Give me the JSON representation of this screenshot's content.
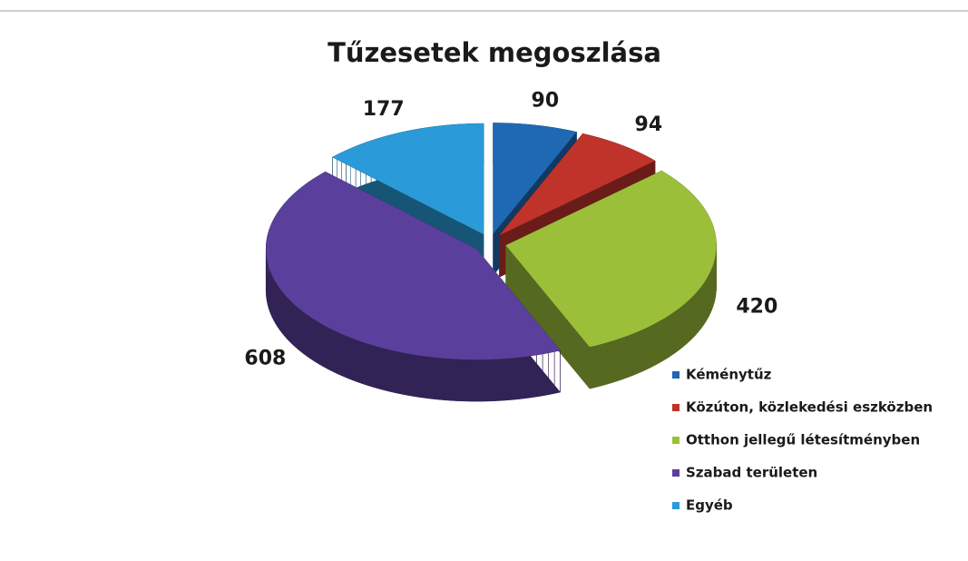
{
  "chart_data": {
    "type": "pie",
    "title": "Tűzesetek megoszlása",
    "categories": [
      "Kéménytűz",
      "Közúton, közlekedési eszközben",
      "Otthon jellegű létesítményben",
      "Szabad területen",
      "Egyéb"
    ],
    "values": [
      90,
      94,
      420,
      608,
      177
    ],
    "colors": [
      "#1f68b3",
      "#c0332b",
      "#9cbf3a",
      "#5b3f9c",
      "#2a9bd8"
    ],
    "legend": "right-bottom"
  }
}
